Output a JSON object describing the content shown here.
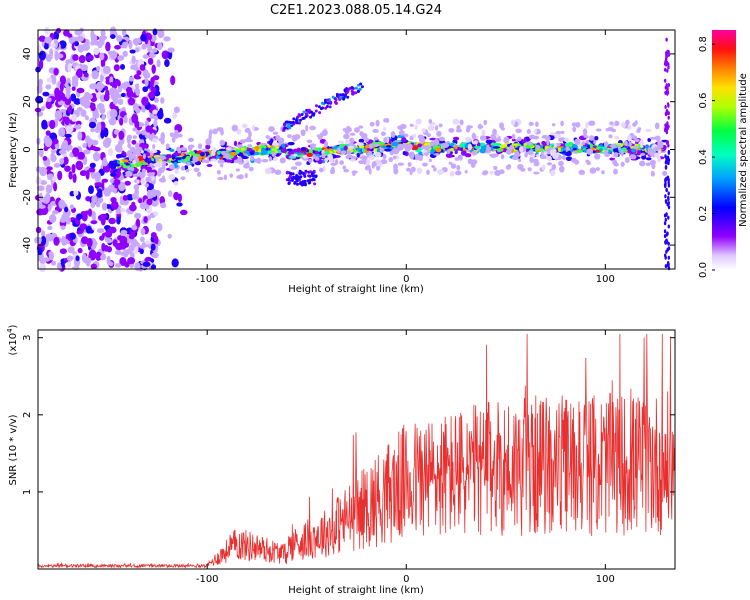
{
  "title": "C2E1.2023.088.05.14.G24",
  "chart_data": [
    {
      "type": "heatmap",
      "xlabel": "Height of straight line (km)",
      "ylabel": "Frequency (Hz)",
      "xlim": [
        -185,
        135
      ],
      "ylim": [
        -50,
        50
      ],
      "xticks": [
        -100,
        0,
        100
      ],
      "yticks": [
        -40,
        -20,
        0,
        20,
        40
      ],
      "colorbar": {
        "label": "Normalized spectral amplitude",
        "range": [
          0,
          0.85
        ],
        "ticks": [
          "0.0",
          "0.2",
          "0.4",
          "0.6",
          "0.8"
        ],
        "tick_values": [
          0,
          0.2,
          0.4,
          0.6,
          0.8
        ]
      },
      "colors": [
        "#ffffff",
        "#8000ff",
        "#0000ff",
        "#00d0ff",
        "#00ff80",
        "#a0ff00",
        "#ffff00",
        "#ff8000",
        "#ff0000",
        "#ff00a0"
      ]
    },
    {
      "type": "line",
      "xlabel": "Height of straight line (km)",
      "ylabel": "SNR (10 * v/v)",
      "yunit": "(x10",
      "yunit_exp": "4",
      "yunit_close": ")",
      "xlim": [
        -185,
        135
      ],
      "ylim": [
        0,
        3.1
      ],
      "xticks": [
        -100,
        0,
        100
      ],
      "yticks": [
        1,
        2,
        3
      ],
      "color": "#e83030"
    }
  ]
}
